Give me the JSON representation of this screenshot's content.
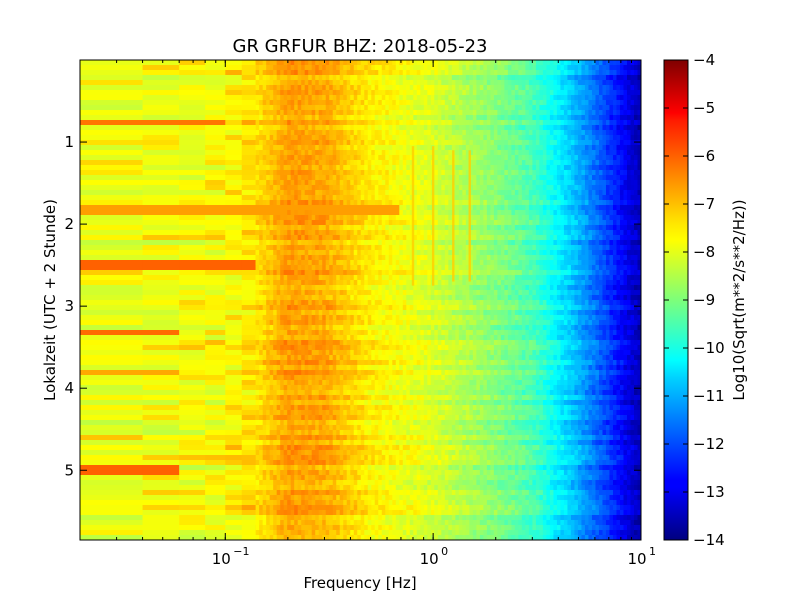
{
  "chart_data": {
    "type": "heatmap",
    "title": "GR GRFUR BHZ: 2018-05-23",
    "xlabel": "Frequency [Hz]",
    "ylabel": "Lokalzeit (UTC + 2 Stunde)",
    "x_scale": "log",
    "xlim": [
      0.02,
      10
    ],
    "x_ticks": [
      {
        "value": 0.1,
        "base": "10",
        "exp": "−1"
      },
      {
        "value": 1,
        "base": "10",
        "exp": "0"
      },
      {
        "value": 10,
        "base": "10",
        "exp": "1"
      }
    ],
    "ylim": [
      0,
      5.85
    ],
    "y_inverted": true,
    "y_ticks": [
      "1",
      "2",
      "3",
      "4",
      "5"
    ],
    "colormap": "jet",
    "colorbar": {
      "label": "Log10(Sqrt(m**2/s**2/Hz))",
      "range": [
        -14,
        -4
      ],
      "ticks": [
        "−4",
        "−5",
        "−6",
        "−7",
        "−8",
        "−9",
        "−10",
        "−11",
        "−12",
        "−13",
        "−14"
      ]
    },
    "spectrum_profile": [
      {
        "freq": 0.02,
        "value": -8.0
      },
      {
        "freq": 0.05,
        "value": -8.0
      },
      {
        "freq": 0.1,
        "value": -7.9
      },
      {
        "freq": 0.14,
        "value": -7.5
      },
      {
        "freq": 0.2,
        "value": -6.8
      },
      {
        "freq": 0.3,
        "value": -6.9
      },
      {
        "freq": 0.5,
        "value": -7.6
      },
      {
        "freq": 1.0,
        "value": -8.1
      },
      {
        "freq": 2.0,
        "value": -8.9
      },
      {
        "freq": 3.0,
        "value": -9.5
      },
      {
        "freq": 5.0,
        "value": -11.0
      },
      {
        "freq": 7.0,
        "value": -12.2
      },
      {
        "freq": 10.0,
        "value": -13.5
      }
    ],
    "high_energy_bands": [
      {
        "time": 0.77,
        "fmax": 0.1,
        "value": -6.4
      },
      {
        "time": 1.83,
        "fmax": 0.7,
        "value": -6.8
      },
      {
        "time": 2.5,
        "fmax": 0.13,
        "value": -6.2
      },
      {
        "time": 3.3,
        "fmax": 0.06,
        "value": -6.3
      },
      {
        "time": 3.82,
        "fmax": 0.06,
        "value": -6.9
      },
      {
        "time": 5.0,
        "fmax": 0.06,
        "value": -6.2
      }
    ],
    "spectral_lines": [
      {
        "freq": 0.8,
        "t_start": 1.05,
        "t_end": 2.75
      },
      {
        "freq": 1.0,
        "t_start": 1.05,
        "t_end": 2.75
      },
      {
        "freq": 1.25,
        "t_start": 1.1,
        "t_end": 2.7
      },
      {
        "freq": 1.5,
        "t_start": 1.1,
        "t_end": 2.7
      }
    ]
  }
}
